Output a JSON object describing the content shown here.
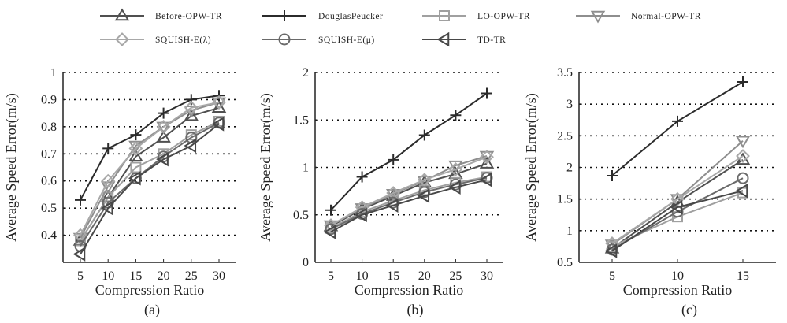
{
  "chart_data": [
    {
      "type": "line",
      "caption": "(a)",
      "xlabel": "Compression Ratio",
      "ylabel": "Average Speed Error(m/s)",
      "x": [
        5,
        10,
        15,
        20,
        25,
        30
      ],
      "xticks": [
        "5",
        "10",
        "15",
        "20",
        "25",
        "30"
      ],
      "ylim": [
        0.3,
        1.0
      ],
      "yticks": [
        "0.4",
        "0.5",
        "0.6",
        "0.7",
        "0.8",
        "0.9",
        "1"
      ],
      "grid": "horizontal dotted",
      "series": [
        {
          "name": "Before-OPW-TR",
          "values": [
            0.38,
            0.54,
            0.69,
            0.76,
            0.84,
            0.87
          ]
        },
        {
          "name": "DouglasPeucker",
          "values": [
            0.53,
            0.72,
            0.77,
            0.85,
            0.9,
            0.915
          ]
        },
        {
          "name": "LO-OPW-TR",
          "values": [
            0.38,
            0.54,
            0.65,
            0.7,
            0.77,
            0.82
          ]
        },
        {
          "name": "Normal-OPW-TR",
          "values": [
            0.39,
            0.58,
            0.73,
            0.8,
            0.86,
            0.89
          ]
        },
        {
          "name": "SQUISH-E(λ)",
          "values": [
            0.4,
            0.6,
            0.72,
            0.8,
            0.87,
            0.89
          ]
        },
        {
          "name": "SQUISH-E(μ)",
          "values": [
            0.36,
            0.52,
            0.61,
            0.69,
            0.76,
            0.815
          ]
        },
        {
          "name": "TD-TR",
          "values": [
            0.33,
            0.5,
            0.61,
            0.68,
            0.73,
            0.81
          ]
        }
      ]
    },
    {
      "type": "line",
      "caption": "(b)",
      "xlabel": "Compression Ratio",
      "ylabel": "Average Speed Error(m/s)",
      "x": [
        5,
        10,
        15,
        20,
        25,
        30
      ],
      "xticks": [
        "5",
        "10",
        "15",
        "20",
        "25",
        "30"
      ],
      "ylim": [
        0,
        2.0
      ],
      "yticks": [
        "0",
        "0.5",
        "1",
        "1.5",
        "2"
      ],
      "grid": "horizontal dotted",
      "series": [
        {
          "name": "Before-OPW-TR",
          "values": [
            0.38,
            0.56,
            0.7,
            0.84,
            0.93,
            1.04
          ]
        },
        {
          "name": "DouglasPeucker",
          "values": [
            0.55,
            0.9,
            1.08,
            1.34,
            1.55,
            1.78
          ]
        },
        {
          "name": "LO-OPW-TR",
          "values": [
            0.36,
            0.53,
            0.65,
            0.76,
            0.84,
            0.9
          ]
        },
        {
          "name": "Normal-OPW-TR",
          "values": [
            0.39,
            0.57,
            0.72,
            0.86,
            1.02,
            1.12
          ]
        },
        {
          "name": "SQUISH-E(λ)",
          "values": [
            0.39,
            0.58,
            0.73,
            0.87,
            0.98,
            1.11
          ]
        },
        {
          "name": "SQUISH-E(μ)",
          "values": [
            0.35,
            0.51,
            0.63,
            0.74,
            0.82,
            0.89
          ]
        },
        {
          "name": "TD-TR",
          "values": [
            0.32,
            0.5,
            0.6,
            0.7,
            0.79,
            0.87
          ]
        }
      ]
    },
    {
      "type": "line",
      "caption": "(c)",
      "xlabel": "Compression Ratio",
      "ylabel": "Average Speed Error(m/s)",
      "x": [
        5,
        10,
        15
      ],
      "xticks": [
        "5",
        "10",
        "15"
      ],
      "ylim": [
        0.5,
        3.5
      ],
      "yticks": [
        "0.5",
        "1",
        "1.5",
        "2",
        "2.5",
        "3",
        "3.5"
      ],
      "grid": "horizontal dotted",
      "series": [
        {
          "name": "Before-OPW-TR",
          "values": [
            0.72,
            1.45,
            2.12
          ]
        },
        {
          "name": "DouglasPeucker",
          "values": [
            1.87,
            2.73,
            3.35
          ]
        },
        {
          "name": "LO-OPW-TR",
          "values": [
            0.75,
            1.22,
            1.6
          ]
        },
        {
          "name": "Normal-OPW-TR",
          "values": [
            0.78,
            1.5,
            2.42
          ]
        },
        {
          "name": "SQUISH-E(λ)",
          "values": [
            0.8,
            1.5,
            2.18
          ]
        },
        {
          "name": "SQUISH-E(μ)",
          "values": [
            0.7,
            1.3,
            1.83
          ]
        },
        {
          "name": "TD-TR",
          "values": [
            0.68,
            1.37,
            1.63
          ]
        }
      ]
    }
  ],
  "legend": {
    "placement": "top",
    "items": [
      {
        "name": "Before-OPW-TR",
        "marker": "triangle-up",
        "color": "#505050"
      },
      {
        "name": "DouglasPeucker",
        "marker": "plus",
        "color": "#2b2b2b"
      },
      {
        "name": "LO-OPW-TR",
        "marker": "square",
        "color": "#a0a0a0"
      },
      {
        "name": "Normal-OPW-TR",
        "marker": "triangle-down",
        "color": "#8e8e8e"
      },
      {
        "name": "SQUISH-E(λ)",
        "marker": "diamond",
        "color": "#a8a8a8"
      },
      {
        "name": "SQUISH-E(μ)",
        "marker": "circle",
        "color": "#6a6a6a"
      },
      {
        "name": "TD-TR",
        "marker": "triangle-left",
        "color": "#484848"
      }
    ]
  }
}
